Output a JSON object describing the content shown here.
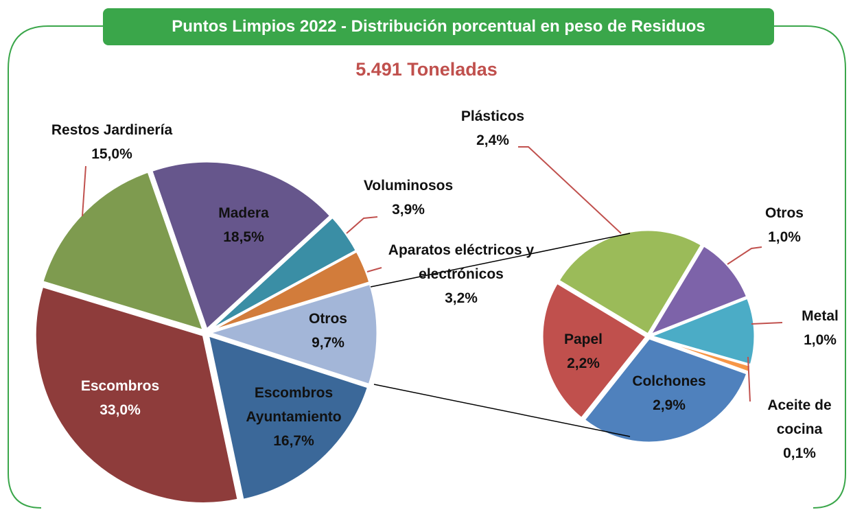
{
  "chart_data": [
    {
      "type": "pie",
      "title": "Puntos Limpios 2022 - Distribución porcentual en peso de Residuos",
      "subtitle": "5.491 Toneladas",
      "categories": [
        "Otros",
        "Escombros Ayuntamiento",
        "Escombros",
        "Restos Jardinería",
        "Madera",
        "Voluminosos",
        "Aparatos eléctricos y electrónicos"
      ],
      "values": [
        9.7,
        16.7,
        33.0,
        15.0,
        18.5,
        3.9,
        3.2
      ],
      "value_labels": [
        "9,7%",
        "16,7%",
        "33,0%",
        "15,0%",
        "18,5%",
        "3,9%",
        "3,2%"
      ],
      "colors": [
        "#a3b6d8",
        "#3b6899",
        "#8e3c3b",
        "#7e9b4f",
        "#66568c",
        "#3a8ea5",
        "#d27c3b"
      ]
    },
    {
      "type": "pie",
      "categories": [
        "Plásticos",
        "Otros",
        "Metal",
        "Aceite de cocina",
        "Colchones",
        "Papel"
      ],
      "values": [
        2.4,
        1.0,
        1.0,
        0.1,
        2.9,
        2.2
      ],
      "value_labels": [
        "2,4%",
        "1,0%",
        "1,0%",
        "0,1%",
        "2,9%",
        "2,2%"
      ],
      "colors": [
        "#9bbb59",
        "#7d63a9",
        "#4bacc6",
        "#f79646",
        "#4f81bd",
        "#c0504d"
      ]
    }
  ]
}
